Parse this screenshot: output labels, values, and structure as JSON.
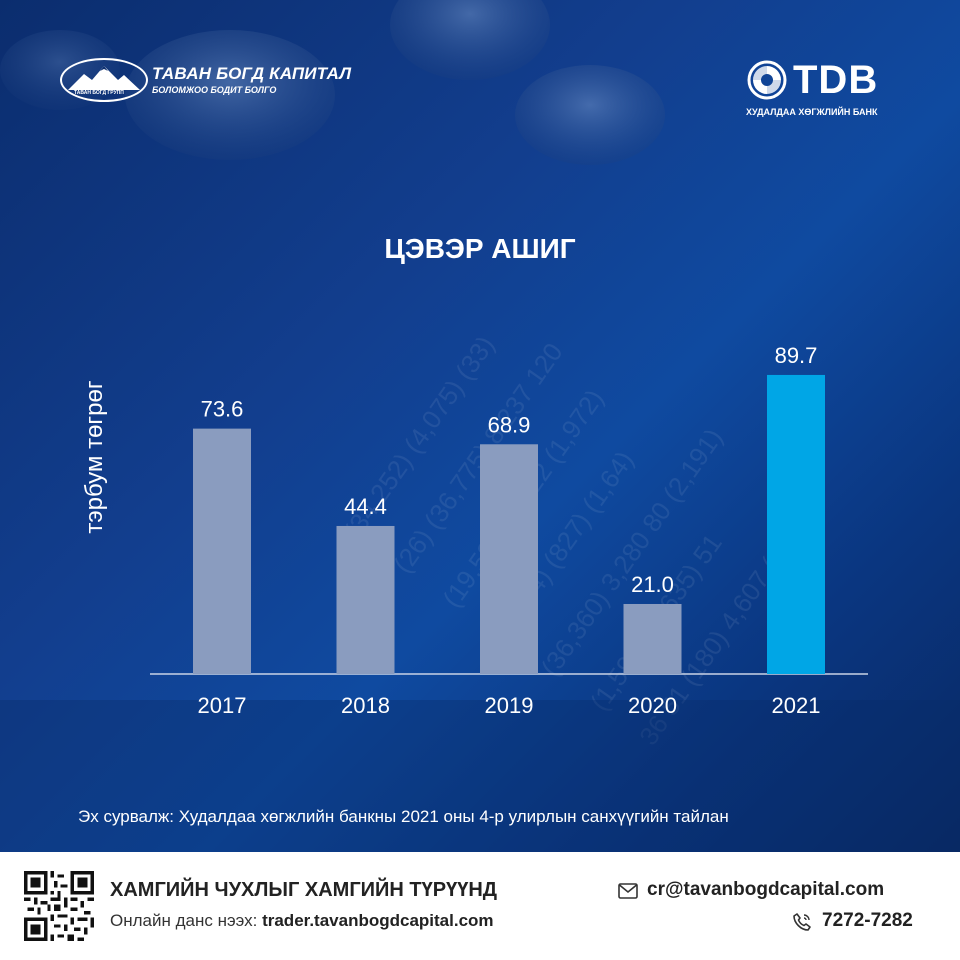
{
  "header": {
    "left_logo": {
      "brand": "ТАВАН БОГД КАПИТАЛ",
      "tagline": "БОЛОМЖОО БОДИТ БОЛГО",
      "sub": "ТАВАН БОГД ГРУПП"
    },
    "right_logo": {
      "brand": "TDB",
      "sub": "ХУДАЛДАА ХӨГЖЛИЙН БАНК"
    }
  },
  "chart_data": {
    "type": "bar",
    "title": "ЦЭВЭР АШИГ",
    "ylabel": "тэрбум төгрөг",
    "xlabel": "",
    "categories": [
      "2017",
      "2018",
      "2019",
      "2020",
      "2021"
    ],
    "values": [
      73.6,
      44.4,
      68.9,
      21.0,
      89.7
    ],
    "value_labels": [
      "73.6",
      "44.4",
      "68.9",
      "21.0",
      "89.7"
    ],
    "ylim": [
      0,
      100
    ],
    "grid": false,
    "colors": {
      "default": "#8a9cbf",
      "highlight": "#00a6e6"
    },
    "highlight_index": 4
  },
  "source": "Эх сурвалж: Худалдаа хөгжлийн банкны 2021 оны 4-р улирлын санхүүгийн  тайлан",
  "footer": {
    "slogan": "ХАМГИЙН ЧУХЛЫГ ХАМГИЙН ТҮРҮҮНД",
    "online_label": "Онлайн данс нээх: ",
    "online_url": "trader.tavanbogdcapital.com",
    "email": "cr@tavanbogdcapital.com",
    "phone": "7272-7282",
    "icons": {
      "email": "email-icon",
      "phone": "phone-icon",
      "qr": "qr-code"
    }
  }
}
